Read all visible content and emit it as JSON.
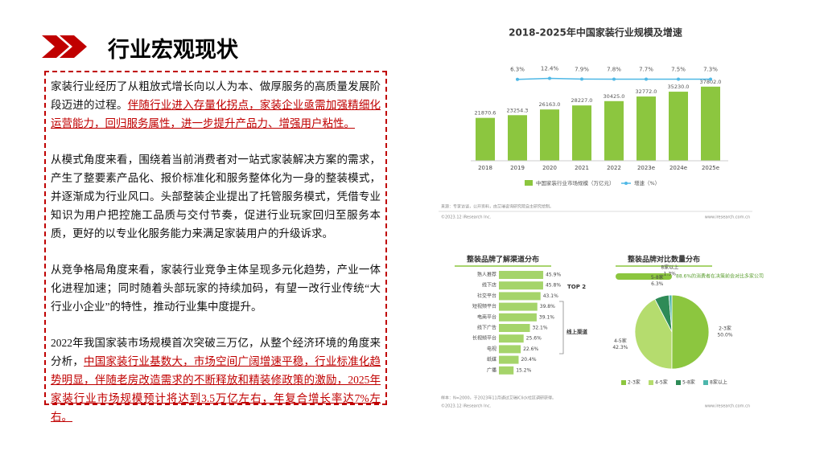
{
  "slide": {
    "title": "行业宏观现状",
    "paragraphs": [
      {
        "text": "家装行业经历了从粗放式增长向以人为本、做厚服务的高质量发展阶段迈进的过程。",
        "highlight": "伴随行业进入存量化拐点，家装企业亟需加强精细化运营能力，回归服务属性，进一步提升产品力、增强用户粘性。"
      },
      {
        "text": "从模式角度来看，围绕着当前消费者对一站式家装解决方案的需求，产生了整要素产品化、报价标准化和服务整体化为一身的整装模式，并逐渐成为行业风口。头部整装企业提出了托管服务模式，凭借专业知识为用户把控施工品质与交付节奏，促进行业玩家回归至服务本质，更好的以专业化服务能力来满足家装用户的升级诉求。"
      },
      {
        "text": "从竞争格局角度来看，家装行业竞争主体呈现多元化趋势，产业一体化进程加速；同时随着头部玩家的持续加码，有望一改行业传统“大行业小企业”的特性，推动行业集中度提升。"
      },
      {
        "text": "2022年我国家装市场规模首次突破三万亿，从整个经济环境的角度来分析，",
        "highlight": "中国家装行业基数大，市场空间广阔增速平稳，行业标准化趋势明显，伴随老房改造需求的不断释放和精装修政策的激励，2025年家装行业市场规模预计将达到3.5万亿左右，年复合增长率达7%左右。"
      }
    ]
  },
  "chart_data": [
    {
      "type": "bar_line",
      "title": "2018-2025年中国家装行业规模及增速",
      "categories": [
        "2018",
        "2019",
        "2020",
        "2021",
        "2022",
        "2023e",
        "2024e",
        "2025e"
      ],
      "series": [
        {
          "name": "中国家装行业市场规模（万亿元）",
          "color": "#8cc63f",
          "values": [
            21870.6,
            23254.3,
            26163.0,
            28227.0,
            30425.0,
            32772.0,
            35230.0,
            37802.0
          ],
          "value_labels": [
            "21870.6",
            "23254.3",
            "26163.0",
            "28227.0",
            "30425.0",
            "32772.0",
            "35230.0",
            "37802.0"
          ]
        },
        {
          "name": "增速（%）",
          "color": "#4fb8e6",
          "axis": "y2",
          "values": [
            null,
            6.3,
            12.4,
            7.9,
            7.8,
            7.7,
            7.5,
            7.3
          ],
          "value_labels": [
            null,
            "6.3%",
            "12.4%",
            "7.9%",
            "7.8%",
            "7.7%",
            "7.5%",
            "7.3%"
          ]
        }
      ],
      "ylim": [
        0,
        41000
      ],
      "y2lim": [
        0,
        100
      ],
      "source": "来源：专家访谈，公开资料，由艾瑞咨询研究院自主研究绘制。",
      "copyright": "©2023.12 iResearch Inc.",
      "website": "www.iresearch.com.cn"
    },
    {
      "type": "hbar",
      "title": "整装品牌了解渠道分布",
      "categories": [
        "熟人推荐",
        "线下店",
        "社交平台",
        "短视频平台",
        "电商平台",
        "线下广告",
        "长视频平台",
        "电视",
        "纸媒",
        "广播"
      ],
      "values": [
        45.9,
        45.8,
        43.1,
        39.8,
        39.1,
        32.1,
        25.6,
        22.6,
        20.4,
        15.2
      ],
      "value_labels": [
        "45.9%",
        "45.8%",
        "43.1%",
        "39.8%",
        "39.1%",
        "32.1%",
        "25.6%",
        "22.6%",
        "20.4%",
        "15.2%"
      ],
      "color": "#a5d46a",
      "xlim": [
        0,
        50
      ],
      "annotations": [
        "TOP 2",
        "线上渠道"
      ]
    },
    {
      "type": "pie",
      "title": "整装品牌对比数量分布",
      "categories": [
        "2-3家",
        "4-5家",
        "5-8家",
        "8家以上"
      ],
      "values": [
        50.0,
        42.3,
        6.3,
        1.3
      ],
      "value_labels": [
        "50.0%",
        "42.3%",
        "6.3%",
        "1.3%"
      ],
      "colors": [
        "#8cc63f",
        "#b5dc6e",
        "#2e8b57",
        "#4db6ac"
      ],
      "annotation": "88.6%的消费者在决策前会对比多家公司",
      "note": "样本：N=2000，于2023年11月通过艾瑞iClick社区调研获得。",
      "copyright": "©2023.12 iResearch Inc.",
      "website": "www.iresearch.com.cn"
    }
  ]
}
